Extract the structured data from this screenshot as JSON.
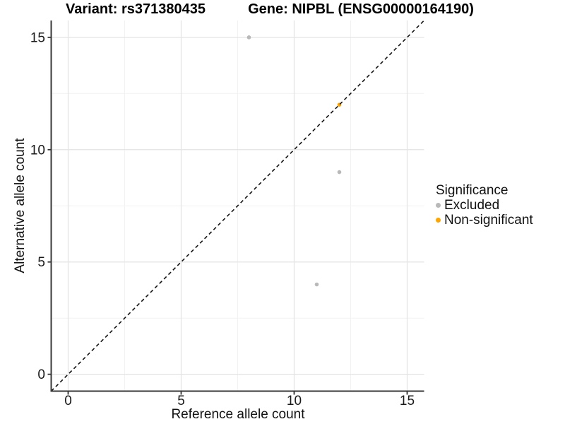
{
  "chart_data": {
    "type": "scatter",
    "titles": {
      "left": "Variant: rs371380435",
      "right": "Gene: NIPBL (ENSG00000164190)"
    },
    "xlabel": "Reference allele count",
    "ylabel": "Alternative allele count",
    "xlim": [
      -0.75,
      15.75
    ],
    "ylim": [
      -0.75,
      15.75
    ],
    "xticks": [
      0,
      5,
      10,
      15
    ],
    "yticks": [
      0,
      5,
      10,
      15
    ],
    "xminor": [
      2.5,
      7.5,
      12.5
    ],
    "yminor": [
      2.5,
      7.5,
      12.5
    ],
    "grid": "on",
    "legend_position": "right",
    "identity_line": {
      "slope": 1,
      "intercept": 0,
      "style": "dashed",
      "color": "#141414"
    },
    "series": [
      {
        "name": "Excluded",
        "color": "#b9b9b9",
        "points": [
          [
            8,
            15
          ],
          [
            12,
            9
          ],
          [
            11,
            4
          ]
        ]
      },
      {
        "name": "Non-significant",
        "color": "#ffa500",
        "points": [
          [
            12,
            12
          ]
        ]
      }
    ],
    "legend": {
      "title": "Significance"
    },
    "colors": {
      "grid_major": "#e3e3e3",
      "grid_minor": "#f2f2f2",
      "axis_line": "#3a3a3a",
      "tick_mark": "#333333",
      "tick_text": "#1a1a1a"
    }
  }
}
